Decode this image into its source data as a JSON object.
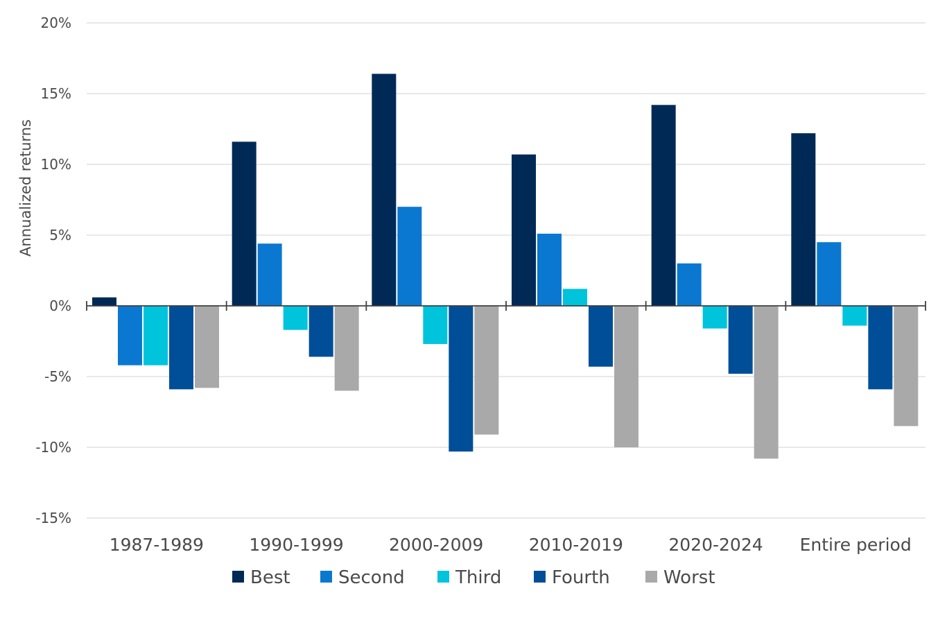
{
  "chart_data": {
    "type": "bar",
    "title": "",
    "xlabel": "",
    "ylabel": "Annualized returns",
    "ylim": [
      -15,
      20
    ],
    "yticks": [
      20,
      15,
      10,
      5,
      0,
      -5,
      -10,
      -15
    ],
    "ytick_labels": [
      "20%",
      "15%",
      "10%",
      "5%",
      "0%",
      "-5%",
      "-10%",
      "-15%"
    ],
    "grid": true,
    "legend_position": "bottom",
    "categories": [
      "1987-1989",
      "1990-1999",
      "2000-2009",
      "2010-2019",
      "2020-2024",
      "Entire period"
    ],
    "series": [
      {
        "name": "Best",
        "color": "#002a55",
        "values": [
          0.6,
          11.6,
          16.4,
          10.7,
          14.2,
          12.2
        ]
      },
      {
        "name": "Second",
        "color": "#0a78d1",
        "values": [
          -4.2,
          4.4,
          7.0,
          5.1,
          3.0,
          4.5
        ]
      },
      {
        "name": "Third",
        "color": "#00c3dc",
        "values": [
          -4.2,
          -1.7,
          -2.7,
          1.2,
          -1.6,
          -1.4
        ]
      },
      {
        "name": "Fourth",
        "color": "#004e98",
        "values": [
          -5.9,
          -3.6,
          -10.3,
          -4.3,
          -4.8,
          -5.9
        ]
      },
      {
        "name": "Worst",
        "color": "#a9a9a9",
        "values": [
          -5.8,
          -6.0,
          -9.1,
          -10.0,
          -10.8,
          -8.5
        ]
      }
    ]
  }
}
